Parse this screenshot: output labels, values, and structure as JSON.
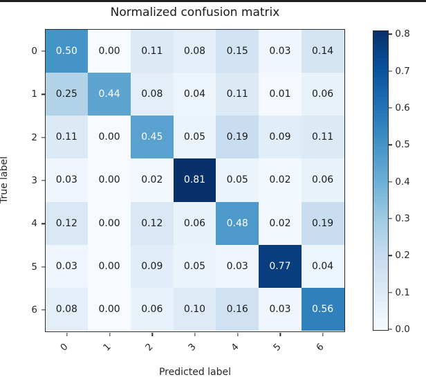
{
  "window": {
    "top_edge_color": "#1f1f1f",
    "background_color": "#ffffff"
  },
  "chart_data": {
    "type": "heatmap",
    "title": "Normalized confusion matrix",
    "xlabel": "Predicted label",
    "ylabel": "True label",
    "x_tick_labels": [
      "0",
      "1",
      "2",
      "3",
      "4",
      "5",
      "6"
    ],
    "y_tick_labels": [
      "0",
      "1",
      "2",
      "3",
      "4",
      "5",
      "6"
    ],
    "matrix": [
      [
        0.5,
        0.0,
        0.11,
        0.08,
        0.15,
        0.03,
        0.14
      ],
      [
        0.25,
        0.44,
        0.08,
        0.04,
        0.11,
        0.01,
        0.06
      ],
      [
        0.11,
        0.0,
        0.45,
        0.05,
        0.19,
        0.09,
        0.11
      ],
      [
        0.03,
        0.0,
        0.02,
        0.81,
        0.05,
        0.02,
        0.06
      ],
      [
        0.12,
        0.0,
        0.12,
        0.06,
        0.48,
        0.02,
        0.19
      ],
      [
        0.03,
        0.0,
        0.09,
        0.05,
        0.03,
        0.77,
        0.04
      ],
      [
        0.08,
        0.0,
        0.06,
        0.1,
        0.16,
        0.03,
        0.56
      ]
    ],
    "value_decimals": 2,
    "colormap": "Blues",
    "colormap_colors": [
      "#f7fbff",
      "#deebf7",
      "#c6dbef",
      "#9ecae1",
      "#6baed6",
      "#4292c6",
      "#2171b5",
      "#08519c",
      "#08306b"
    ],
    "vmin": 0.0,
    "vmax": 0.81,
    "text_threshold": 0.405,
    "cell_text_color_low": "#1a1a1a",
    "cell_text_color_high": "#ffffff",
    "colorbar_tick_labels": [
      "0.0",
      "0.1",
      "0.2",
      "0.3",
      "0.4",
      "0.5",
      "0.6",
      "0.7",
      "0.8"
    ],
    "legend_position": "right-colorbar",
    "grid": false,
    "x_tick_rotation_deg": 45
  }
}
